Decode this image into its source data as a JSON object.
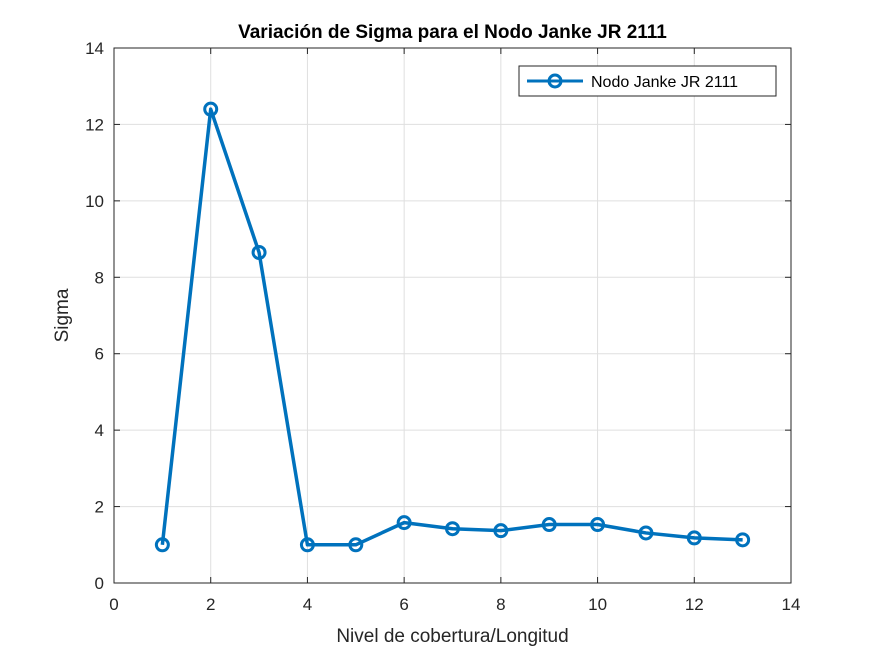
{
  "chart_data": {
    "type": "line",
    "title": "Variación de Sigma para el Nodo Janke JR 2111",
    "xlabel": "Nivel de cobertura/Longitud",
    "ylabel": "Sigma",
    "xlim": [
      0,
      14
    ],
    "ylim": [
      0,
      14
    ],
    "xticks": [
      0,
      2,
      4,
      6,
      8,
      10,
      12,
      14
    ],
    "yticks": [
      0,
      2,
      4,
      6,
      8,
      10,
      12,
      14
    ],
    "grid": true,
    "legend_position": "top-right",
    "series": [
      {
        "name": "Nodo Janke JR 2111",
        "color": "#0072BD",
        "marker": "circle",
        "x": [
          1,
          2,
          3,
          4,
          5,
          6,
          7,
          8,
          9,
          10,
          11,
          12,
          13
        ],
        "y": [
          1.0,
          12.4,
          8.65,
          1.0,
          1.0,
          1.58,
          1.42,
          1.37,
          1.53,
          1.53,
          1.31,
          1.18,
          1.13
        ]
      }
    ]
  }
}
